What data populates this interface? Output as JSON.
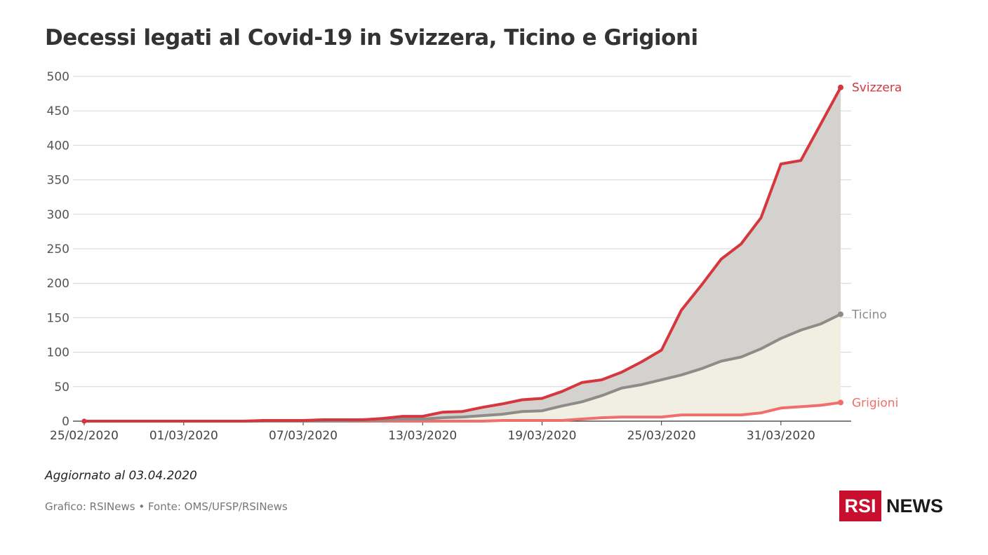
{
  "title": "Decessi legati al Covid-19 in Svizzera, Ticino e Grigioni",
  "footer": {
    "updated": "Aggiornato al 03.04.2020",
    "credits": "Grafico: RSINews • Fonte: OMS/UFSP/RSINews"
  },
  "logo": {
    "box_text": "RSI",
    "text": "NEWS",
    "color": "#c8102e"
  },
  "chart_data": {
    "type": "area",
    "title": "Decessi legati al Covid-19 in Svizzera, Ticino e Grigioni",
    "xlabel": "",
    "ylabel": "",
    "ylim": [
      0,
      500
    ],
    "yticks": [
      0,
      50,
      100,
      150,
      200,
      250,
      300,
      350,
      400,
      450,
      500
    ],
    "grid": true,
    "legend": "end-of-line labels",
    "x": [
      "25/02/2020",
      "26/02/2020",
      "27/02/2020",
      "28/02/2020",
      "29/02/2020",
      "01/03/2020",
      "02/03/2020",
      "03/03/2020",
      "04/03/2020",
      "05/03/2020",
      "06/03/2020",
      "07/03/2020",
      "08/03/2020",
      "09/03/2020",
      "10/03/2020",
      "11/03/2020",
      "12/03/2020",
      "13/03/2020",
      "14/03/2020",
      "15/03/2020",
      "16/03/2020",
      "17/03/2020",
      "18/03/2020",
      "19/03/2020",
      "20/03/2020",
      "21/03/2020",
      "22/03/2020",
      "23/03/2020",
      "24/03/2020",
      "25/03/2020",
      "26/03/2020",
      "27/03/2020",
      "28/03/2020",
      "29/03/2020",
      "30/03/2020",
      "31/03/2020",
      "01/04/2020",
      "02/04/2020",
      "03/04/2020"
    ],
    "xtick_labels": [
      "25/02/2020",
      "01/03/2020",
      "07/03/2020",
      "13/03/2020",
      "19/03/2020",
      "25/03/2020",
      "31/03/2020"
    ],
    "series": [
      {
        "name": "Svizzera",
        "color": "#d6363e",
        "fill": "#d3d2ce",
        "values": [
          0,
          0,
          0,
          0,
          0,
          0,
          0,
          0,
          0,
          1,
          1,
          1,
          2,
          2,
          2,
          4,
          7,
          7,
          13,
          14,
          20,
          25,
          31,
          33,
          43,
          56,
          60,
          71,
          86,
          103,
          161,
          197,
          235,
          257,
          295,
          373,
          378,
          431,
          484
        ]
      },
      {
        "name": "Ticino",
        "color": "#8c8c8a",
        "fill": "#f1eee2",
        "values": [
          0,
          0,
          0,
          0,
          0,
          0,
          0,
          0,
          0,
          0,
          0,
          0,
          0,
          0,
          1,
          2,
          3,
          3,
          5,
          6,
          8,
          10,
          14,
          15,
          22,
          28,
          37,
          48,
          53,
          60,
          67,
          76,
          87,
          93,
          105,
          120,
          132,
          141,
          155
        ]
      },
      {
        "name": "Grigioni",
        "color": "#f06f6c",
        "fill": "",
        "values": [
          0,
          0,
          0,
          0,
          0,
          0,
          0,
          0,
          0,
          0,
          0,
          0,
          0,
          0,
          0,
          0,
          0,
          0,
          0,
          0,
          0,
          1,
          1,
          1,
          1,
          3,
          5,
          6,
          6,
          6,
          9,
          9,
          9,
          9,
          12,
          19,
          21,
          23,
          27
        ]
      }
    ]
  }
}
